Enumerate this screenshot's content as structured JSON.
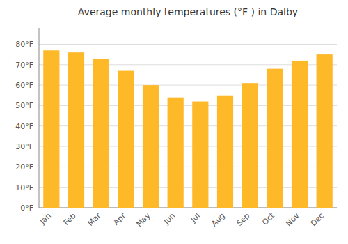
{
  "chart_data": {
    "type": "bar",
    "title": "Average monthly temperatures (°F ) in Dalby",
    "categories": [
      "Jan",
      "Feb",
      "Mar",
      "Apr",
      "May",
      "Jun",
      "Jul",
      "Aug",
      "Sep",
      "Oct",
      "Nov",
      "Dec"
    ],
    "values": [
      77,
      76,
      73,
      67,
      60,
      54,
      52,
      55,
      61,
      68,
      72,
      75
    ],
    "color": "#FDB927",
    "ylim": [
      0,
      88
    ],
    "yticks": [
      {
        "value": 0,
        "label": "0°F"
      },
      {
        "value": 10,
        "label": "10°F"
      },
      {
        "value": 20,
        "label": "20°F"
      },
      {
        "value": 30,
        "label": "30°F"
      },
      {
        "value": 40,
        "label": "40°F"
      },
      {
        "value": 50,
        "label": "50°F"
      },
      {
        "value": 60,
        "label": "60°F"
      },
      {
        "value": 70,
        "label": "70°F"
      },
      {
        "value": 80,
        "label": "80°F"
      }
    ],
    "grid": true
  }
}
